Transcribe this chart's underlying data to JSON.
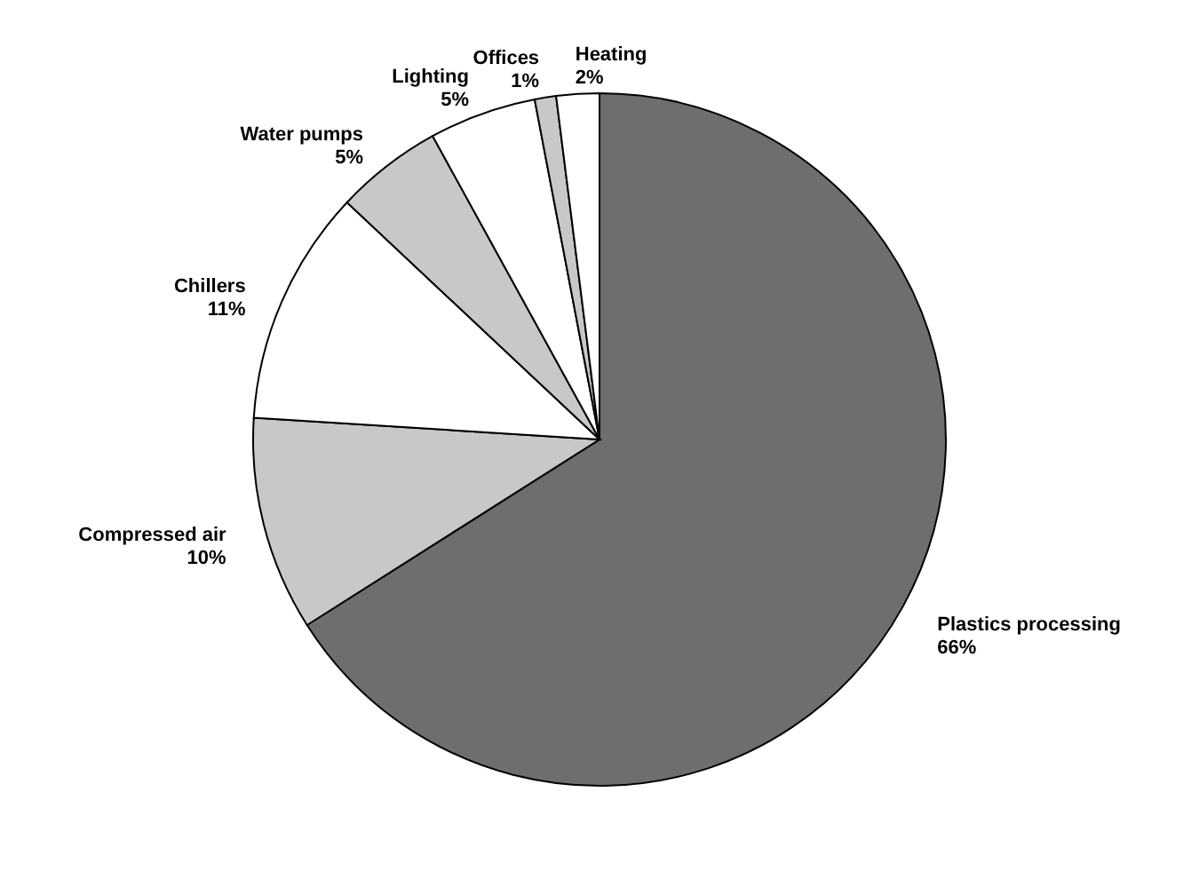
{
  "chart_data": {
    "type": "pie",
    "categories": [
      "Plastics processing",
      "Compressed air",
      "Chillers",
      "Water pumps",
      "Lighting",
      "Offices",
      "Heating"
    ],
    "values": [
      66,
      10,
      11,
      5,
      5,
      1,
      2
    ],
    "value_labels": [
      "66%",
      "10%",
      "11%",
      "5%",
      "5%",
      "1%",
      "2%"
    ],
    "colors": [
      "#6e6e6e",
      "#c8c8c8",
      "#ffffff",
      "#c8c8c8",
      "#ffffff",
      "#c8c8c8",
      "#ffffff"
    ]
  }
}
